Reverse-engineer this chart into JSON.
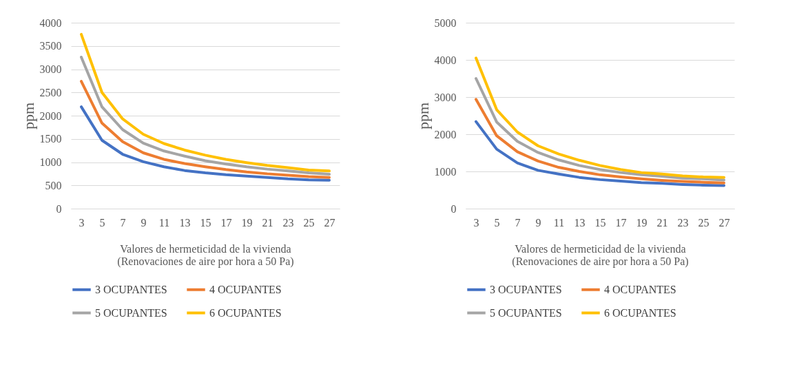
{
  "chart_data": [
    {
      "type": "line",
      "categories": [
        "3",
        "5",
        "7",
        "9",
        "11",
        "13",
        "15",
        "17",
        "19",
        "21",
        "23",
        "25",
        "27"
      ],
      "xlabel": "Valores de hermeticidad de la vivienda\n(Renovaciones de aire por hora a 50 Pa)",
      "ylabel": "ppm",
      "ylim": [
        0,
        4000
      ],
      "yticks": [
        0,
        500,
        1000,
        1500,
        2000,
        2500,
        3000,
        3500,
        4000
      ],
      "grid": "y",
      "legend": "bottom",
      "marker": "none",
      "line_style": "solid",
      "series": [
        {
          "name": "3 OCUPANTES",
          "color": "#4472c4",
          "values": [
            2190,
            1470,
            1170,
            1010,
            900,
            820,
            770,
            730,
            700,
            670,
            640,
            620,
            610
          ]
        },
        {
          "name": "4 OCUPANTES",
          "color": "#ed7d31",
          "values": [
            2740,
            1840,
            1440,
            1200,
            1060,
            970,
            900,
            840,
            790,
            750,
            720,
            690,
            670
          ]
        },
        {
          "name": "5 OCUPANTES",
          "color": "#a5a5a5",
          "values": [
            3260,
            2190,
            1700,
            1410,
            1240,
            1130,
            1030,
            960,
            900,
            850,
            810,
            770,
            740
          ]
        },
        {
          "name": "6 OCUPANTES",
          "color": "#ffc000",
          "values": [
            3750,
            2500,
            1930,
            1600,
            1400,
            1260,
            1150,
            1060,
            990,
            930,
            880,
            830,
            810
          ]
        }
      ]
    },
    {
      "type": "line",
      "categories": [
        "3",
        "5",
        "7",
        "9",
        "11",
        "13",
        "15",
        "17",
        "19",
        "21",
        "23",
        "25",
        "27"
      ],
      "xlabel": "Valores de hermeticidad de la vivienda\n(Renovaciones de aire por hora a 50 Pa)",
      "ylabel": "ppm",
      "ylim": [
        0,
        5000
      ],
      "yticks": [
        0,
        1000,
        2000,
        3000,
        4000,
        5000
      ],
      "grid": "y",
      "legend": "bottom",
      "marker": "none",
      "line_style": "solid",
      "series": [
        {
          "name": "3 OCUPANTES",
          "color": "#4472c4",
          "values": [
            2340,
            1600,
            1230,
            1030,
            930,
            840,
            780,
            740,
            700,
            680,
            650,
            630,
            620
          ]
        },
        {
          "name": "4 OCUPANTES",
          "color": "#ed7d31",
          "values": [
            2940,
            1960,
            1530,
            1280,
            1110,
            1000,
            910,
            850,
            800,
            760,
            730,
            710,
            690
          ]
        },
        {
          "name": "5 OCUPANTES",
          "color": "#a5a5a5",
          "values": [
            3500,
            2330,
            1810,
            1510,
            1310,
            1160,
            1050,
            970,
            910,
            870,
            820,
            800,
            770
          ]
        },
        {
          "name": "6 OCUPANTES",
          "color": "#ffc000",
          "values": [
            4050,
            2660,
            2060,
            1690,
            1470,
            1300,
            1160,
            1050,
            970,
            930,
            880,
            850,
            840
          ]
        }
      ]
    }
  ]
}
